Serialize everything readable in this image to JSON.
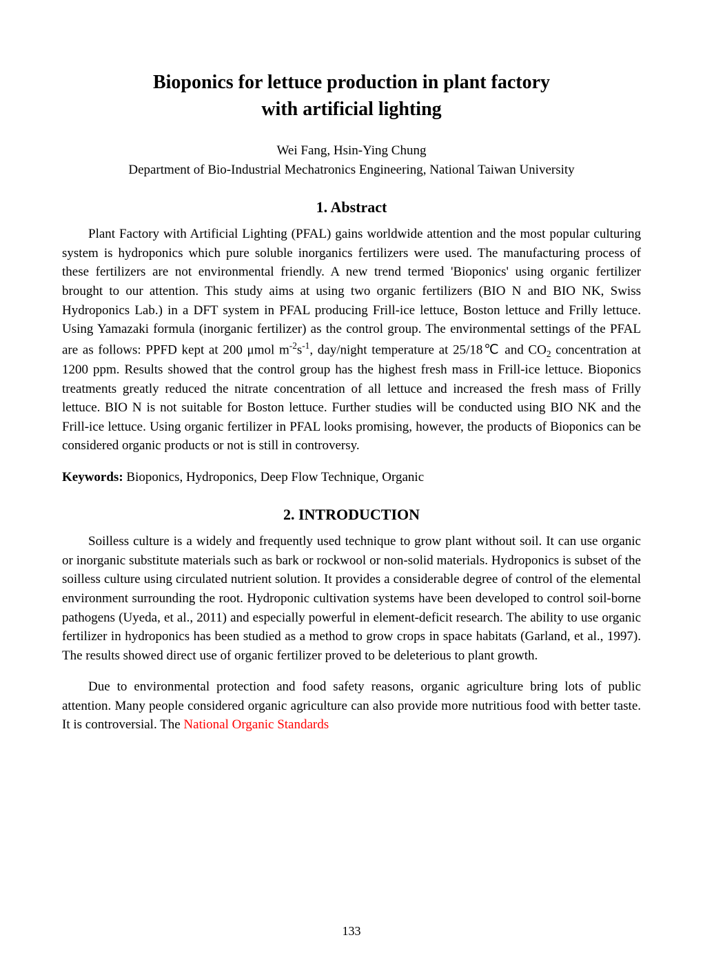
{
  "document": {
    "title_line1": "Bioponics for lettuce production in plant factory",
    "title_line2": "with artificial lighting",
    "authors": "Wei Fang, Hsin-Ying Chung",
    "affiliation": "Department of Bio-Industrial Mechatronics Engineering, National Taiwan University",
    "sections": {
      "abstract": {
        "heading": "1. Abstract",
        "body_part1": "Plant Factory with Artificial Lighting (PFAL) gains worldwide attention and the most popular culturing system is hydroponics which pure soluble inorganics fertilizers were used. The manufacturing process of these fertilizers are not environmental friendly. A new trend termed 'Bioponics' using organic fertilizer brought to our attention. This study aims at using two organic fertilizers (BIO N and BIO NK, Swiss Hydroponics Lab.) in a DFT system in PFAL producing Frill-ice lettuce, Boston lettuce and Frilly lettuce. Using Yamazaki formula (inorganic fertilizer) as the control group. The environmental settings of the PFAL are as follows: PPFD kept at 200 μmol m",
        "body_part2": ", day/night temperature at 25/18℃ and CO",
        "body_part3": " concentration at 1200 ppm. Results showed that the control group has the highest fresh mass in Frill-ice lettuce. Bioponics treatments greatly reduced the nitrate concentration of all lettuce and increased the fresh mass of Frilly lettuce. BIO N is not suitable for Boston lettuce. Further studies will be conducted using BIO NK and the Frill-ice lettuce. Using organic fertilizer in PFAL looks promising, however, the products of Bioponics can be considered organic products or not is still in controversy.",
        "sup1": "-2",
        "sup2": "-1",
        "sub1": "2"
      },
      "keywords": {
        "label": "Keywords:",
        "text": " Bioponics, Hydroponics, Deep Flow Technique, Organic"
      },
      "introduction": {
        "heading": "2. INTRODUCTION",
        "para1": "Soilless culture is a widely and frequently used technique to grow plant without soil. It can use organic or inorganic substitute materials such as bark or rockwool or non-solid materials. Hydroponics is subset of the soilless culture using circulated nutrient solution. It provides a considerable degree of control of the elemental environment surrounding the root. Hydroponic cultivation systems have been developed to control soil-borne pathogens (Uyeda, et al., 2011) and especially powerful in element-deficit research. The ability to use organic fertilizer in hydroponics has been studied as a method to grow crops in space habitats (Garland, et al., 1997). The results showed direct use of organic fertilizer proved to be deleterious to plant growth.",
        "para2_part1": "Due to environmental protection and food safety reasons, organic agriculture bring lots of public attention. Many people considered organic agriculture can also provide more nutritious food with better taste. It is controversial. ",
        "para2_the": "The",
        "para2_red": " National Organic Standards"
      }
    },
    "page_number": "133",
    "colors": {
      "text": "#000000",
      "red": "#ff0000",
      "background": "#ffffff"
    },
    "typography": {
      "font_family": "Times New Roman",
      "title_size": 28,
      "heading_size": 22,
      "body_size": 19,
      "page_number_size": 18,
      "line_height": 1.45
    }
  }
}
